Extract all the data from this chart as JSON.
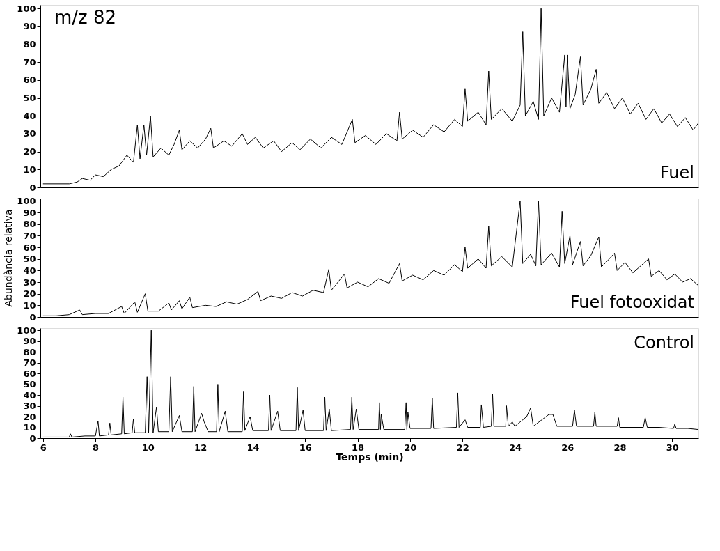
{
  "chart_data": [
    {
      "type": "line",
      "annotations": [
        "m/z 82"
      ],
      "xlim": [
        5.9,
        31
      ],
      "ylim": [
        0,
        102
      ],
      "yticks": [
        0,
        10,
        20,
        30,
        40,
        50,
        60,
        70,
        80,
        90,
        100
      ],
      "tick_labels": "y",
      "grid": false,
      "series": [
        {
          "name": "Fuel",
          "color": "#000000",
          "x": [
            6.0,
            6.5,
            7.0,
            7.3,
            7.5,
            7.8,
            8.0,
            8.3,
            8.6,
            8.9,
            9.2,
            9.45,
            9.6,
            9.7,
            9.85,
            9.95,
            10.1,
            10.2,
            10.5,
            10.8,
            11.0,
            11.2,
            11.3,
            11.6,
            11.9,
            12.2,
            12.4,
            12.5,
            12.9,
            13.2,
            13.6,
            13.8,
            14.1,
            14.4,
            14.8,
            15.1,
            15.5,
            15.8,
            16.2,
            16.6,
            17.0,
            17.4,
            17.8,
            17.9,
            18.3,
            18.7,
            19.1,
            19.5,
            19.6,
            19.7,
            20.1,
            20.5,
            20.9,
            21.3,
            21.7,
            22.0,
            22.1,
            22.2,
            22.6,
            22.9,
            23.0,
            23.1,
            23.5,
            23.9,
            24.2,
            24.3,
            24.4,
            24.7,
            24.9,
            25.0,
            25.1,
            25.4,
            25.7,
            25.9,
            25.95,
            26.0,
            26.1,
            26.3,
            26.5,
            26.6,
            26.9,
            27.1,
            27.2,
            27.5,
            27.8,
            28.1,
            28.4,
            28.7,
            29.0,
            29.3,
            29.6,
            29.9,
            30.2,
            30.5,
            30.8,
            31.0
          ],
          "values": [
            2,
            2,
            2,
            3,
            5,
            4,
            7,
            6,
            10,
            12,
            18,
            14,
            35,
            16,
            35,
            18,
            40,
            17,
            22,
            18,
            24,
            32,
            21,
            26,
            22,
            27,
            33,
            22,
            26,
            23,
            30,
            24,
            28,
            22,
            26,
            20,
            25,
            21,
            27,
            22,
            28,
            24,
            38,
            25,
            29,
            24,
            30,
            26,
            42,
            27,
            32,
            28,
            35,
            31,
            38,
            34,
            55,
            37,
            42,
            35,
            65,
            38,
            44,
            37,
            46,
            87,
            40,
            48,
            38,
            100,
            40,
            50,
            42,
            74,
            45,
            74,
            44,
            52,
            73,
            46,
            55,
            66,
            47,
            53,
            44,
            50,
            41,
            47,
            38,
            44,
            36,
            41,
            34,
            39,
            32,
            36
          ]
        }
      ]
    },
    {
      "type": "line",
      "ylabel": "Abundància relativa",
      "xlim": [
        5.9,
        31
      ],
      "ylim": [
        0,
        102
      ],
      "yticks": [
        0,
        10,
        20,
        30,
        40,
        50,
        60,
        70,
        80,
        90,
        100
      ],
      "tick_labels": "y",
      "grid": false,
      "series": [
        {
          "name": "Fuel fotooxidat",
          "color": "#000000",
          "x": [
            6.0,
            6.5,
            7.0,
            7.4,
            7.5,
            8.0,
            8.5,
            9.0,
            9.1,
            9.5,
            9.6,
            9.9,
            10.0,
            10.4,
            10.8,
            10.9,
            11.2,
            11.3,
            11.6,
            11.7,
            12.2,
            12.6,
            13.0,
            13.4,
            13.8,
            14.2,
            14.3,
            14.7,
            15.1,
            15.5,
            15.9,
            16.3,
            16.7,
            16.9,
            17.0,
            17.5,
            17.6,
            18.0,
            18.4,
            18.8,
            19.2,
            19.6,
            19.7,
            20.1,
            20.5,
            20.9,
            21.3,
            21.7,
            22.0,
            22.1,
            22.2,
            22.6,
            22.9,
            23.0,
            23.1,
            23.5,
            23.9,
            24.2,
            24.3,
            24.6,
            24.8,
            24.9,
            25.0,
            25.4,
            25.7,
            25.8,
            25.9,
            26.1,
            26.2,
            26.5,
            26.6,
            26.9,
            27.2,
            27.3,
            27.6,
            27.8,
            27.9,
            28.2,
            28.5,
            28.8,
            29.1,
            29.2,
            29.5,
            29.8,
            30.1,
            30.4,
            30.7,
            31.0
          ],
          "values": [
            1,
            1,
            2,
            6,
            2,
            3,
            3,
            9,
            3,
            13,
            4,
            20,
            5,
            5,
            12,
            6,
            14,
            7,
            17,
            8,
            10,
            9,
            13,
            11,
            15,
            22,
            14,
            18,
            16,
            21,
            18,
            23,
            21,
            41,
            23,
            37,
            25,
            30,
            26,
            33,
            29,
            46,
            31,
            36,
            32,
            40,
            36,
            45,
            39,
            60,
            42,
            50,
            42,
            78,
            44,
            52,
            43,
            100,
            46,
            54,
            44,
            100,
            45,
            55,
            43,
            91,
            46,
            70,
            45,
            65,
            44,
            53,
            69,
            43,
            50,
            55,
            40,
            47,
            38,
            44,
            50,
            35,
            40,
            32,
            37,
            30,
            33,
            27
          ]
        }
      ]
    },
    {
      "type": "line",
      "xlabel": "Temps (min)",
      "xlim": [
        5.9,
        31
      ],
      "xticks": [
        6,
        8,
        10,
        12,
        14,
        16,
        18,
        20,
        22,
        24,
        26,
        28,
        30
      ],
      "ylim": [
        0,
        102
      ],
      "yticks": [
        0,
        10,
        20,
        30,
        40,
        50,
        60,
        70,
        80,
        90,
        100
      ],
      "grid": false,
      "series": [
        {
          "name": "Control",
          "color": "#000000",
          "x": [
            6.0,
            6.5,
            7.0,
            7.05,
            7.1,
            7.6,
            8.0,
            8.1,
            8.15,
            8.5,
            8.55,
            8.6,
            9.0,
            9.05,
            9.1,
            9.4,
            9.45,
            9.5,
            9.9,
            9.97,
            10.03,
            10.13,
            10.2,
            10.33,
            10.4,
            10.8,
            10.87,
            10.93,
            11.2,
            11.3,
            11.7,
            11.75,
            11.8,
            12.05,
            12.15,
            12.3,
            12.62,
            12.67,
            12.72,
            12.95,
            13.05,
            13.6,
            13.65,
            13.7,
            13.9,
            14.0,
            14.6,
            14.65,
            14.7,
            14.95,
            15.05,
            15.65,
            15.7,
            15.75,
            15.92,
            16.0,
            16.7,
            16.75,
            16.8,
            16.92,
            17.0,
            17.73,
            17.78,
            17.83,
            17.95,
            18.05,
            18.8,
            18.83,
            18.87,
            18.9,
            19.0,
            19.8,
            19.85,
            19.88,
            19.92,
            20.0,
            20.8,
            20.85,
            20.9,
            21.77,
            21.82,
            21.87,
            22.1,
            22.2,
            22.68,
            22.72,
            22.8,
            23.1,
            23.15,
            23.2,
            23.65,
            23.68,
            23.75,
            23.9,
            24.0,
            24.45,
            24.6,
            24.7,
            25.3,
            25.45,
            25.6,
            26.2,
            26.27,
            26.35,
            27.0,
            27.05,
            27.1,
            27.9,
            27.95,
            28.0,
            28.9,
            28.97,
            29.05,
            29.5,
            30.05,
            30.1,
            30.15,
            30.6,
            31.0
          ],
          "values": [
            1,
            1,
            1,
            4,
            1,
            2,
            2,
            16,
            2,
            3,
            14,
            3,
            4,
            38,
            4,
            5,
            18,
            5,
            5,
            57,
            5,
            100,
            5,
            29,
            6,
            6,
            57,
            6,
            21,
            6,
            6,
            48,
            6,
            23,
            15,
            6,
            6,
            50,
            6,
            25,
            6,
            6,
            43,
            7,
            20,
            7,
            7,
            40,
            7,
            25,
            7,
            7,
            47,
            7,
            26,
            7,
            7,
            38,
            7,
            27,
            7,
            8,
            38,
            8,
            27,
            8,
            8,
            33,
            8,
            22,
            8,
            8,
            33,
            8,
            24,
            9,
            9,
            37,
            9,
            10,
            42,
            10,
            17,
            10,
            10,
            31,
            10,
            11,
            41,
            11,
            11,
            30,
            11,
            15,
            11,
            20,
            28,
            11,
            22,
            22,
            11,
            11,
            26,
            11,
            11,
            24,
            11,
            11,
            19,
            10,
            10,
            19,
            10,
            10,
            9,
            13,
            9,
            9,
            8
          ]
        }
      ]
    }
  ]
}
